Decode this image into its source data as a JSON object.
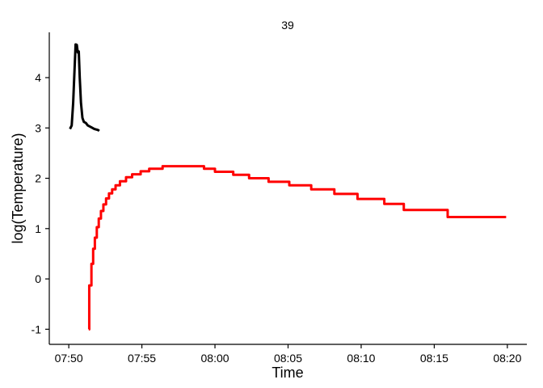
{
  "chart_data": {
    "type": "line",
    "title": "39",
    "xlabel": "Time",
    "ylabel": "log(Temperature)",
    "x_tick_labels": [
      "07:50",
      "07:55",
      "08:00",
      "08:05",
      "08:10",
      "08:15",
      "08:20"
    ],
    "y_tick_labels": [
      "-1",
      "0",
      "1",
      "2",
      "3",
      "4"
    ],
    "xlim": [
      "07:48:40",
      "08:21:20"
    ],
    "ylim": [
      -1.3,
      4.9
    ],
    "grid": false,
    "legend": "none",
    "series": [
      {
        "color": "#000000",
        "points": [
          [
            "07:50:05",
            2.98
          ],
          [
            "07:50:12",
            3.05
          ],
          [
            "07:50:18",
            3.5
          ],
          [
            "07:50:24",
            4.2
          ],
          [
            "07:50:28",
            4.66
          ],
          [
            "07:50:33",
            4.65
          ],
          [
            "07:50:37",
            4.5
          ],
          [
            "07:50:41",
            4.52
          ],
          [
            "07:50:45",
            4.0
          ],
          [
            "07:50:50",
            3.5
          ],
          [
            "07:50:56",
            3.2
          ],
          [
            "07:51:02",
            3.12
          ],
          [
            "07:51:10",
            3.1
          ],
          [
            "07:51:18",
            3.05
          ],
          [
            "07:51:30",
            3.02
          ],
          [
            "07:51:45",
            2.98
          ],
          [
            "07:52:00",
            2.96
          ],
          [
            "07:52:05",
            2.94
          ]
        ]
      },
      {
        "color": "#ff0000",
        "step": true,
        "points": [
          [
            "07:51:22",
            -1.0
          ],
          [
            "07:51:24",
            -0.13
          ],
          [
            "07:51:33",
            0.3
          ],
          [
            "07:51:40",
            0.6
          ],
          [
            "07:51:47",
            0.82
          ],
          [
            "07:51:55",
            1.03
          ],
          [
            "07:52:03",
            1.2
          ],
          [
            "07:52:12",
            1.35
          ],
          [
            "07:52:22",
            1.48
          ],
          [
            "07:52:33",
            1.6
          ],
          [
            "07:52:45",
            1.7
          ],
          [
            "07:52:58",
            1.78
          ],
          [
            "07:53:12",
            1.86
          ],
          [
            "07:53:30",
            1.94
          ],
          [
            "07:53:55",
            2.02
          ],
          [
            "07:54:20",
            2.08
          ],
          [
            "07:54:55",
            2.14
          ],
          [
            "07:55:30",
            2.19
          ],
          [
            "07:56:25",
            2.24
          ],
          [
            "07:59:15",
            2.19
          ],
          [
            "08:00:00",
            2.13
          ],
          [
            "08:01:15",
            2.07
          ],
          [
            "08:02:20",
            2.0
          ],
          [
            "08:03:40",
            1.93
          ],
          [
            "08:05:05",
            1.86
          ],
          [
            "08:06:35",
            1.78
          ],
          [
            "08:08:10",
            1.69
          ],
          [
            "08:09:45",
            1.59
          ],
          [
            "08:11:35",
            1.49
          ],
          [
            "08:12:55",
            1.37
          ],
          [
            "08:15:55",
            1.23
          ],
          [
            "08:19:55",
            1.23
          ]
        ]
      }
    ]
  }
}
